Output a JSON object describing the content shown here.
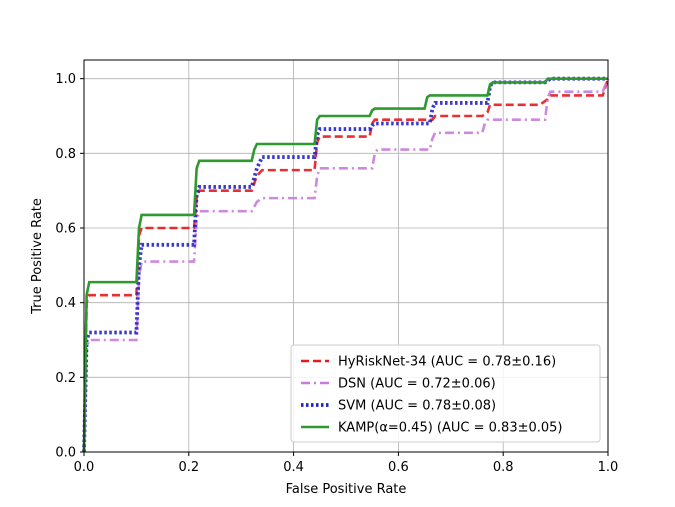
{
  "chart_data": {
    "type": "line",
    "title": "",
    "xlabel": "False Positive Rate",
    "ylabel": "True Positive Rate",
    "xlim": [
      0,
      1
    ],
    "ylim": [
      0,
      1.05
    ],
    "xticks": [
      "0.0",
      "0.2",
      "0.4",
      "0.6",
      "0.8",
      "1.0"
    ],
    "yticks": [
      "0.0",
      "0.2",
      "0.4",
      "0.6",
      "0.8",
      "1.0"
    ],
    "grid": true,
    "legend_position": "lower-right",
    "series": [
      {
        "name": "HyRiskNet-34 (AUC = 0.78±0.16)",
        "color": "#e41a1c",
        "dash": "dashed",
        "x": [
          0,
          0.005,
          0.01,
          0.04,
          0.1,
          0.105,
          0.11,
          0.21,
          0.215,
          0.22,
          0.32,
          0.33,
          0.34,
          0.44,
          0.445,
          0.45,
          0.545,
          0.55,
          0.555,
          0.66,
          0.665,
          0.67,
          0.76,
          0.77,
          0.775,
          0.87,
          0.885,
          0.89,
          0.99,
          1.0
        ],
        "y": [
          0.0,
          0.4,
          0.42,
          0.42,
          0.42,
          0.58,
          0.6,
          0.6,
          0.68,
          0.7,
          0.7,
          0.74,
          0.755,
          0.755,
          0.83,
          0.845,
          0.845,
          0.88,
          0.89,
          0.89,
          0.89,
          0.9,
          0.9,
          0.91,
          0.93,
          0.93,
          0.945,
          0.955,
          0.955,
          1.0
        ]
      },
      {
        "name": "DSN (AUC = 0.72±0.06)",
        "color": "#c77cdb",
        "dash": "dashdot",
        "x": [
          0,
          0.005,
          0.01,
          0.03,
          0.1,
          0.105,
          0.11,
          0.21,
          0.215,
          0.22,
          0.32,
          0.33,
          0.34,
          0.44,
          0.445,
          0.45,
          0.55,
          0.555,
          0.56,
          0.66,
          0.665,
          0.67,
          0.76,
          0.765,
          0.77,
          0.88,
          0.885,
          0.89,
          0.99,
          1.0
        ],
        "y": [
          0.0,
          0.28,
          0.3,
          0.3,
          0.3,
          0.47,
          0.51,
          0.51,
          0.62,
          0.645,
          0.645,
          0.67,
          0.68,
          0.68,
          0.74,
          0.76,
          0.76,
          0.8,
          0.81,
          0.81,
          0.84,
          0.855,
          0.855,
          0.88,
          0.89,
          0.89,
          0.95,
          0.965,
          0.965,
          1.0
        ]
      },
      {
        "name": "SVM (AUC = 0.78±0.08)",
        "color": "#2323c8",
        "dash": "dotted",
        "x": [
          0,
          0.005,
          0.01,
          0.05,
          0.1,
          0.105,
          0.11,
          0.21,
          0.215,
          0.22,
          0.32,
          0.33,
          0.34,
          0.44,
          0.445,
          0.45,
          0.545,
          0.55,
          0.555,
          0.66,
          0.665,
          0.67,
          0.77,
          0.775,
          0.78,
          0.88,
          0.885,
          0.89,
          0.99,
          1.0
        ],
        "y": [
          0.0,
          0.3,
          0.32,
          0.32,
          0.32,
          0.5,
          0.555,
          0.555,
          0.69,
          0.71,
          0.71,
          0.76,
          0.79,
          0.79,
          0.85,
          0.865,
          0.865,
          0.875,
          0.88,
          0.88,
          0.92,
          0.935,
          0.935,
          0.98,
          0.99,
          0.99,
          0.995,
          1.0,
          1.0,
          1.0
        ]
      },
      {
        "name": "KAMP(α=0.45) (AUC = 0.83±0.05)",
        "color": "#2e9a2e",
        "dash": "solid",
        "x": [
          0,
          0.005,
          0.01,
          0.05,
          0.1,
          0.105,
          0.11,
          0.21,
          0.215,
          0.22,
          0.32,
          0.325,
          0.33,
          0.44,
          0.445,
          0.45,
          0.545,
          0.55,
          0.555,
          0.65,
          0.655,
          0.66,
          0.77,
          0.775,
          0.78,
          0.88,
          0.885,
          0.89,
          0.99,
          1.0
        ],
        "y": [
          0.0,
          0.42,
          0.455,
          0.455,
          0.455,
          0.6,
          0.635,
          0.635,
          0.76,
          0.78,
          0.78,
          0.81,
          0.825,
          0.825,
          0.89,
          0.9,
          0.9,
          0.915,
          0.92,
          0.92,
          0.95,
          0.955,
          0.955,
          0.985,
          0.99,
          0.99,
          1.0,
          1.0,
          1.0,
          1.0
        ]
      }
    ]
  }
}
